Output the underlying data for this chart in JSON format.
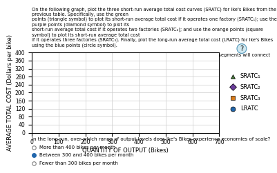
{
  "title": "",
  "xlabel": "QUANTITY OF OUTPUT (Bikes)",
  "ylabel": "AVERAGE TOTAL COST (Dollars per bike)",
  "xlim": [
    0,
    700
  ],
  "ylim": [
    0,
    400
  ],
  "xticks": [
    0,
    100,
    200,
    300,
    400,
    500,
    600,
    700
  ],
  "yticks": [
    0,
    40,
    80,
    120,
    160,
    200,
    240,
    280,
    320,
    360,
    400
  ],
  "legend_items": [
    {
      "label": "SRATC₁",
      "color": "#4a7c3f",
      "marker": "^"
    },
    {
      "label": "SRATC₂",
      "color": "#6a3d9a",
      "marker": "D"
    },
    {
      "label": "SRATC₃",
      "color": "#d97c1a",
      "marker": "s"
    },
    {
      "label": "LRATC",
      "color": "#2166ac",
      "marker": "o"
    }
  ],
  "background_color": "#ffffff",
  "grid_color": "#cccccc",
  "axis_label_fontsize": 6,
  "tick_fontsize": 5.5,
  "legend_fontsize": 6,
  "question_text": "In the long run, over which range of output levels does Ike's Bikes experience economies of scale?",
  "radio_options": [
    "More than 400 bikes per month",
    "Between 300 and 400 bikes per month",
    "Fewer than 300 bikes per month"
  ],
  "selected_option": 1
}
